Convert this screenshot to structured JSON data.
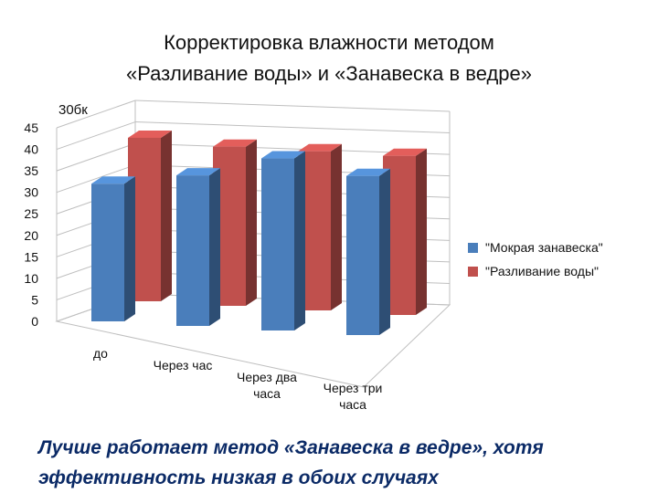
{
  "title": {
    "line1": "Корректировка влажности методом",
    "line2": "«Разливание воды» и «Занавеска в ведре»"
  },
  "units_label": "30бк",
  "chart_data": {
    "type": "bar",
    "categories": [
      "до",
      "Через час",
      "Через два часа",
      "Через три часа"
    ],
    "category_lines": [
      [
        "до"
      ],
      [
        "Через час"
      ],
      [
        "Через два",
        "часа"
      ],
      [
        "Через три",
        "часа"
      ]
    ],
    "series": [
      {
        "name": "\"Мокрая занавеска\"",
        "values": [
          32,
          35,
          40,
          37
        ],
        "color": "#4a7ebb"
      },
      {
        "name": "\"Разливание воды\"",
        "values": [
          38,
          37,
          37,
          37
        ],
        "color": "#c0504d"
      }
    ],
    "yticks": [
      0,
      5,
      10,
      15,
      20,
      25,
      30,
      35,
      40,
      45
    ],
    "ylim": [
      0,
      45
    ],
    "grid": true,
    "legend": "right"
  },
  "footer": {
    "line1": "Лучше работает метод «Занавеска в ведре», хотя",
    "line2": "эффективность низкая в обоих случаях"
  }
}
